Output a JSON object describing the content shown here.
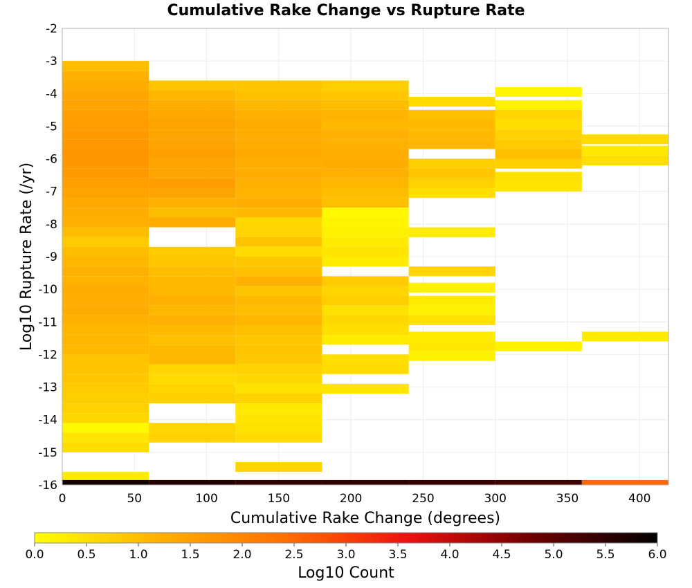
{
  "chart_data": {
    "type": "heatmap",
    "title": "Cumulative Rake Change vs Rupture Rate",
    "xlabel": "Cumulative Rake Change (degrees)",
    "ylabel": "Log10 Rupture Rate (/yr)",
    "xlim": [
      0,
      420
    ],
    "ylim": [
      -16,
      -2
    ],
    "x_ticks": [
      0,
      50,
      100,
      150,
      200,
      250,
      300,
      350,
      400
    ],
    "y_ticks": [
      -16,
      -15,
      -14,
      -13,
      -12,
      -11,
      -10,
      -9,
      -8,
      -7,
      -6,
      -5,
      -4,
      -3,
      -2
    ],
    "grid": true,
    "x_bin_width": 60,
    "y_bin_height": 0.3,
    "value_label": "Log10 Count",
    "colorbar": {
      "label": "Log10 Count",
      "range": [
        0,
        6
      ],
      "ticks": [
        0.0,
        0.5,
        1.0,
        1.5,
        2.0,
        2.5,
        3.0,
        3.5,
        4.0,
        4.5,
        5.0,
        5.5,
        6.0
      ],
      "stops": [
        "#ffff00",
        "#ffb000",
        "#ff7000",
        "#ee1010",
        "#6e0000",
        "#000000"
      ],
      "placement": "bottom"
    },
    "columns": [
      {
        "x0": 0,
        "cells": [
          {
            "y": -3.15,
            "v": 1.0
          },
          {
            "y": -3.45,
            "v": 1.2
          },
          {
            "y": -3.75,
            "v": 1.3
          },
          {
            "y": -4.05,
            "v": 1.4
          },
          {
            "y": -4.35,
            "v": 1.45
          },
          {
            "y": -4.65,
            "v": 1.5
          },
          {
            "y": -4.95,
            "v": 1.55
          },
          {
            "y": -5.25,
            "v": 1.6
          },
          {
            "y": -5.55,
            "v": 1.65
          },
          {
            "y": -5.85,
            "v": 1.7
          },
          {
            "y": -6.15,
            "v": 1.65
          },
          {
            "y": -6.45,
            "v": 1.6
          },
          {
            "y": -6.75,
            "v": 1.5
          },
          {
            "y": -7.05,
            "v": 1.45
          },
          {
            "y": -7.35,
            "v": 1.35
          },
          {
            "y": -7.65,
            "v": 1.3
          },
          {
            "y": -7.95,
            "v": 1.2
          },
          {
            "y": -8.25,
            "v": 1.0
          },
          {
            "y": -8.55,
            "v": 0.8
          },
          {
            "y": -8.85,
            "v": 1.0
          },
          {
            "y": -9.15,
            "v": 1.1
          },
          {
            "y": -9.45,
            "v": 1.2
          },
          {
            "y": -9.75,
            "v": 1.15
          },
          {
            "y": -10.05,
            "v": 1.3
          },
          {
            "y": -10.35,
            "v": 1.25
          },
          {
            "y": -10.65,
            "v": 1.3
          },
          {
            "y": -10.95,
            "v": 1.2
          },
          {
            "y": -11.25,
            "v": 1.1
          },
          {
            "y": -11.55,
            "v": 1.1
          },
          {
            "y": -11.85,
            "v": 1.05
          },
          {
            "y": -12.15,
            "v": 0.9
          },
          {
            "y": -12.45,
            "v": 0.9
          },
          {
            "y": -12.75,
            "v": 0.85
          },
          {
            "y": -13.05,
            "v": 0.8
          },
          {
            "y": -13.35,
            "v": 0.75
          },
          {
            "y": -13.65,
            "v": 0.7
          },
          {
            "y": -13.95,
            "v": 0.6
          },
          {
            "y": -14.25,
            "v": 0.1
          },
          {
            "y": -14.55,
            "v": 0.4
          },
          {
            "y": -14.85,
            "v": 0.5
          },
          {
            "y": -15.75,
            "v": 0.3
          },
          {
            "y": -16.0,
            "v": 5.8
          }
        ]
      },
      {
        "x0": 60,
        "cells": [
          {
            "y": -3.75,
            "v": 0.9
          },
          {
            "y": -4.05,
            "v": 1.1
          },
          {
            "y": -4.35,
            "v": 1.25
          },
          {
            "y": -4.65,
            "v": 1.35
          },
          {
            "y": -4.95,
            "v": 1.45
          },
          {
            "y": -5.25,
            "v": 1.4
          },
          {
            "y": -5.55,
            "v": 1.45
          },
          {
            "y": -5.85,
            "v": 1.5
          },
          {
            "y": -6.15,
            "v": 1.45
          },
          {
            "y": -6.45,
            "v": 1.4
          },
          {
            "y": -6.75,
            "v": 1.55
          },
          {
            "y": -7.05,
            "v": 1.4
          },
          {
            "y": -7.35,
            "v": 1.2
          },
          {
            "y": -7.65,
            "v": 1.0
          },
          {
            "y": -7.95,
            "v": 1.3
          },
          {
            "y": -8.85,
            "v": 0.8
          },
          {
            "y": -9.15,
            "v": 0.85
          },
          {
            "y": -9.45,
            "v": 1.0
          },
          {
            "y": -9.75,
            "v": 1.05
          },
          {
            "y": -10.05,
            "v": 1.1
          },
          {
            "y": -10.35,
            "v": 1.2
          },
          {
            "y": -10.65,
            "v": 1.1
          },
          {
            "y": -10.95,
            "v": 1.2
          },
          {
            "y": -11.25,
            "v": 1.05
          },
          {
            "y": -11.55,
            "v": 0.95
          },
          {
            "y": -11.85,
            "v": 1.05
          },
          {
            "y": -12.15,
            "v": 1.1
          },
          {
            "y": -12.45,
            "v": 0.65
          },
          {
            "y": -12.75,
            "v": 0.55
          },
          {
            "y": -13.05,
            "v": 0.65
          },
          {
            "y": -13.35,
            "v": 0.75
          },
          {
            "y": -14.25,
            "v": 0.65
          },
          {
            "y": -14.55,
            "v": 0.7
          },
          {
            "y": -16.0,
            "v": 5.6
          }
        ]
      },
      {
        "x0": 120,
        "cells": [
          {
            "y": -3.75,
            "v": 0.9
          },
          {
            "y": -4.05,
            "v": 0.95
          },
          {
            "y": -4.35,
            "v": 1.1
          },
          {
            "y": -4.65,
            "v": 1.2
          },
          {
            "y": -4.95,
            "v": 1.3
          },
          {
            "y": -5.25,
            "v": 1.25
          },
          {
            "y": -5.55,
            "v": 1.3
          },
          {
            "y": -5.85,
            "v": 1.35
          },
          {
            "y": -6.15,
            "v": 1.25
          },
          {
            "y": -6.45,
            "v": 1.3
          },
          {
            "y": -6.75,
            "v": 1.2
          },
          {
            "y": -7.05,
            "v": 1.15
          },
          {
            "y": -7.35,
            "v": 1.25
          },
          {
            "y": -7.65,
            "v": 1.05
          },
          {
            "y": -7.95,
            "v": 0.6
          },
          {
            "y": -8.25,
            "v": 0.65
          },
          {
            "y": -8.55,
            "v": 0.9
          },
          {
            "y": -8.85,
            "v": 0.55
          },
          {
            "y": -9.15,
            "v": 0.85
          },
          {
            "y": -9.45,
            "v": 0.95
          },
          {
            "y": -9.75,
            "v": 1.2
          },
          {
            "y": -10.05,
            "v": 0.9
          },
          {
            "y": -10.35,
            "v": 1.05
          },
          {
            "y": -10.65,
            "v": 1.0
          },
          {
            "y": -10.95,
            "v": 1.1
          },
          {
            "y": -11.25,
            "v": 0.95
          },
          {
            "y": -11.55,
            "v": 0.85
          },
          {
            "y": -11.85,
            "v": 0.9
          },
          {
            "y": -12.15,
            "v": 0.85
          },
          {
            "y": -12.45,
            "v": 0.7
          },
          {
            "y": -12.75,
            "v": 0.6
          },
          {
            "y": -13.05,
            "v": 0.45
          },
          {
            "y": -13.35,
            "v": 0.7
          },
          {
            "y": -13.65,
            "v": 0.35
          },
          {
            "y": -13.95,
            "v": 0.4
          },
          {
            "y": -14.25,
            "v": 0.45
          },
          {
            "y": -14.55,
            "v": 0.55
          },
          {
            "y": -15.45,
            "v": 0.65
          },
          {
            "y": -16.0,
            "v": 5.5
          }
        ]
      },
      {
        "x0": 180,
        "cells": [
          {
            "y": -3.75,
            "v": 0.75
          },
          {
            "y": -4.05,
            "v": 0.85
          },
          {
            "y": -4.35,
            "v": 1.0
          },
          {
            "y": -4.65,
            "v": 1.15
          },
          {
            "y": -4.95,
            "v": 1.1
          },
          {
            "y": -5.25,
            "v": 1.2
          },
          {
            "y": -5.55,
            "v": 1.2
          },
          {
            "y": -5.85,
            "v": 1.25
          },
          {
            "y": -6.15,
            "v": 1.3
          },
          {
            "y": -6.45,
            "v": 1.2
          },
          {
            "y": -6.75,
            "v": 1.1
          },
          {
            "y": -7.05,
            "v": 1.0
          },
          {
            "y": -7.35,
            "v": 0.95
          },
          {
            "y": -7.65,
            "v": 0.1
          },
          {
            "y": -7.95,
            "v": 0.15
          },
          {
            "y": -8.25,
            "v": 0.2
          },
          {
            "y": -8.55,
            "v": 0.3
          },
          {
            "y": -8.85,
            "v": 0.4
          },
          {
            "y": -9.15,
            "v": 0.3
          },
          {
            "y": -9.75,
            "v": 0.8
          },
          {
            "y": -10.05,
            "v": 0.65
          },
          {
            "y": -10.35,
            "v": 0.75
          },
          {
            "y": -10.65,
            "v": 0.45
          },
          {
            "y": -10.95,
            "v": 0.6
          },
          {
            "y": -11.25,
            "v": 0.5
          },
          {
            "y": -11.55,
            "v": 0.3
          },
          {
            "y": -12.15,
            "v": 0.5
          },
          {
            "y": -12.45,
            "v": 0.55
          },
          {
            "y": -13.05,
            "v": 0.4
          },
          {
            "y": -16.0,
            "v": 5.5
          }
        ]
      },
      {
        "x0": 240,
        "cells": [
          {
            "y": -4.25,
            "v": 0.55
          },
          {
            "y": -4.65,
            "v": 0.95
          },
          {
            "y": -4.95,
            "v": 1.05
          },
          {
            "y": -5.25,
            "v": 1.05
          },
          {
            "y": -5.55,
            "v": 1.1
          },
          {
            "y": -6.15,
            "v": 0.75
          },
          {
            "y": -6.45,
            "v": 0.85
          },
          {
            "y": -6.75,
            "v": 0.7
          },
          {
            "y": -7.05,
            "v": 0.5
          },
          {
            "y": -8.25,
            "v": 0.3
          },
          {
            "y": -9.45,
            "v": 0.65
          },
          {
            "y": -9.95,
            "v": 0.2
          },
          {
            "y": -10.35,
            "v": 0.3
          },
          {
            "y": -10.65,
            "v": 0.2
          },
          {
            "y": -10.95,
            "v": 0.45
          },
          {
            "y": -11.45,
            "v": 0.3
          },
          {
            "y": -11.75,
            "v": 0.35
          },
          {
            "y": -12.05,
            "v": 0.2
          },
          {
            "y": -16.0,
            "v": 5.4
          }
        ]
      },
      {
        "x0": 300,
        "cells": [
          {
            "y": -3.95,
            "v": 0.15
          },
          {
            "y": -4.35,
            "v": 0.2
          },
          {
            "y": -4.65,
            "v": 0.65
          },
          {
            "y": -4.95,
            "v": 0.5
          },
          {
            "y": -5.25,
            "v": 0.7
          },
          {
            "y": -5.55,
            "v": 0.8
          },
          {
            "y": -5.85,
            "v": 0.95
          },
          {
            "y": -6.15,
            "v": 0.75
          },
          {
            "y": -6.55,
            "v": 0.45
          },
          {
            "y": -6.85,
            "v": 0.4
          },
          {
            "y": -11.75,
            "v": 0.2
          },
          {
            "y": -16.0,
            "v": 5.3
          }
        ]
      },
      {
        "x0": 360,
        "cells": [
          {
            "y": -5.4,
            "v": 0.55
          },
          {
            "y": -5.75,
            "v": 0.35
          },
          {
            "y": -6.05,
            "v": 0.5
          },
          {
            "y": -11.45,
            "v": 0.3
          },
          {
            "y": -16.0,
            "v": 2.5
          }
        ]
      }
    ]
  }
}
